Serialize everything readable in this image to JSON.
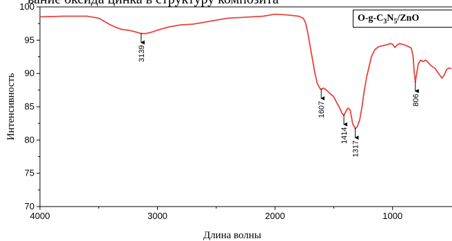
{
  "top_text": "вание oксида цинка в структуру композита",
  "legend_parts": [
    "O-g-C",
    "3",
    "N",
    "5",
    "/ZnO"
  ],
  "chart_data": {
    "type": "line",
    "xlabel": "Длина волны",
    "ylabel": "Интенсивность",
    "xlim": [
      4000,
      500
    ],
    "ylim": [
      70,
      100
    ],
    "xticks": [
      4000,
      3000,
      2000,
      1000
    ],
    "yticks": [
      70,
      75,
      80,
      85,
      90,
      95,
      100
    ],
    "grid": false,
    "series": [
      {
        "color": "#e8413c",
        "points": [
          [
            4000,
            98.5
          ],
          [
            3800,
            98.6
          ],
          [
            3600,
            98.6
          ],
          [
            3500,
            98.3
          ],
          [
            3450,
            97.8
          ],
          [
            3400,
            97.3
          ],
          [
            3350,
            96.9
          ],
          [
            3300,
            96.6
          ],
          [
            3250,
            96.5
          ],
          [
            3200,
            96.3
          ],
          [
            3139,
            96.0
          ],
          [
            3100,
            96.0
          ],
          [
            3050,
            96.2
          ],
          [
            3000,
            96.5
          ],
          [
            2900,
            97.0
          ],
          [
            2800,
            97.3
          ],
          [
            2700,
            97.4
          ],
          [
            2600,
            97.7
          ],
          [
            2500,
            98.0
          ],
          [
            2400,
            98.3
          ],
          [
            2300,
            98.4
          ],
          [
            2200,
            98.5
          ],
          [
            2100,
            98.6
          ],
          [
            2000,
            98.9
          ],
          [
            1900,
            98.8
          ],
          [
            1800,
            98.6
          ],
          [
            1760,
            98.3
          ],
          [
            1740,
            97.6
          ],
          [
            1720,
            96.0
          ],
          [
            1700,
            94.0
          ],
          [
            1680,
            92.0
          ],
          [
            1660,
            90.0
          ],
          [
            1640,
            88.5
          ],
          [
            1620,
            87.8
          ],
          [
            1607,
            87.6
          ],
          [
            1590,
            87.8
          ],
          [
            1570,
            87.6
          ],
          [
            1550,
            87.3
          ],
          [
            1520,
            86.8
          ],
          [
            1500,
            86.5
          ],
          [
            1480,
            85.8
          ],
          [
            1450,
            84.8
          ],
          [
            1430,
            84.0
          ],
          [
            1414,
            83.7
          ],
          [
            1400,
            84.2
          ],
          [
            1380,
            84.8
          ],
          [
            1360,
            84.5
          ],
          [
            1340,
            82.5
          ],
          [
            1317,
            81.7
          ],
          [
            1300,
            82.0
          ],
          [
            1280,
            83.0
          ],
          [
            1260,
            85.0
          ],
          [
            1240,
            87.5
          ],
          [
            1220,
            89.5
          ],
          [
            1200,
            91.0
          ],
          [
            1180,
            92.5
          ],
          [
            1150,
            93.6
          ],
          [
            1120,
            94.0
          ],
          [
            1080,
            94.2
          ],
          [
            1050,
            94.3
          ],
          [
            1020,
            94.5
          ],
          [
            1000,
            94.4
          ],
          [
            980,
            93.9
          ],
          [
            960,
            94.3
          ],
          [
            940,
            94.5
          ],
          [
            900,
            94.3
          ],
          [
            860,
            94.0
          ],
          [
            840,
            93.8
          ],
          [
            825,
            92.5
          ],
          [
            815,
            90.0
          ],
          [
            806,
            88.7
          ],
          [
            795,
            90.0
          ],
          [
            780,
            91.5
          ],
          [
            760,
            92.0
          ],
          [
            740,
            91.8
          ],
          [
            720,
            92.0
          ],
          [
            700,
            91.7
          ],
          [
            680,
            91.3
          ],
          [
            660,
            91.0
          ],
          [
            640,
            90.8
          ],
          [
            620,
            90.3
          ],
          [
            600,
            89.8
          ],
          [
            580,
            89.3
          ],
          [
            560,
            89.8
          ],
          [
            540,
            90.6
          ],
          [
            520,
            90.8
          ],
          [
            500,
            90.7
          ]
        ]
      }
    ],
    "annotations": [
      {
        "label": "3139",
        "x": 3139,
        "y": 96.0
      },
      {
        "label": "1607",
        "x": 1607,
        "y": 87.6
      },
      {
        "label": "1414",
        "x": 1414,
        "y": 83.7
      },
      {
        "label": "1317",
        "x": 1317,
        "y": 81.7
      },
      {
        "label": "806",
        "x": 806,
        "y": 88.7
      }
    ]
  }
}
